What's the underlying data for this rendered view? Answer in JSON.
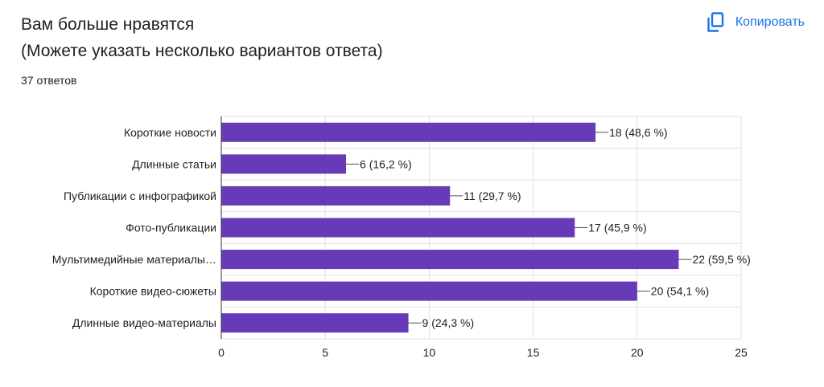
{
  "header": {
    "title_line1": "Вам больше нравятся",
    "title_line2": "(Можете указать несколько вариантов ответа)",
    "responses": "37 ответов",
    "copy_label": "Копировать"
  },
  "colors": {
    "bar": "#673ab7",
    "grid": "#e0e0e0",
    "axis": "#333333",
    "text": "#202124",
    "accent": "#1a73e8"
  },
  "icons": {
    "copy": "copy-icon"
  },
  "chart_data": {
    "type": "bar",
    "orientation": "horizontal",
    "categories": [
      "Короткие новости",
      "Длинные статьи",
      "Публикации с инфографикой",
      "Фото-публикации",
      "Мультимедийные материалы…",
      "Короткие видео-сюжеты",
      "Длинные видео-материалы"
    ],
    "values": [
      18,
      6,
      11,
      17,
      22,
      20,
      9
    ],
    "data_labels": [
      "18 (48,6 %)",
      "6 (16,2 %)",
      "11 (29,7 %)",
      "17 (45,9 %)",
      "22 (59,5 %)",
      "20 (54,1 %)",
      "9 (24,3 %)"
    ],
    "xlim": [
      0,
      25
    ],
    "xticks": [
      0,
      5,
      10,
      15,
      20,
      25
    ],
    "xtick_labels": [
      "0",
      "5",
      "10",
      "15",
      "20",
      "25"
    ],
    "grid": true,
    "legend": "none"
  }
}
